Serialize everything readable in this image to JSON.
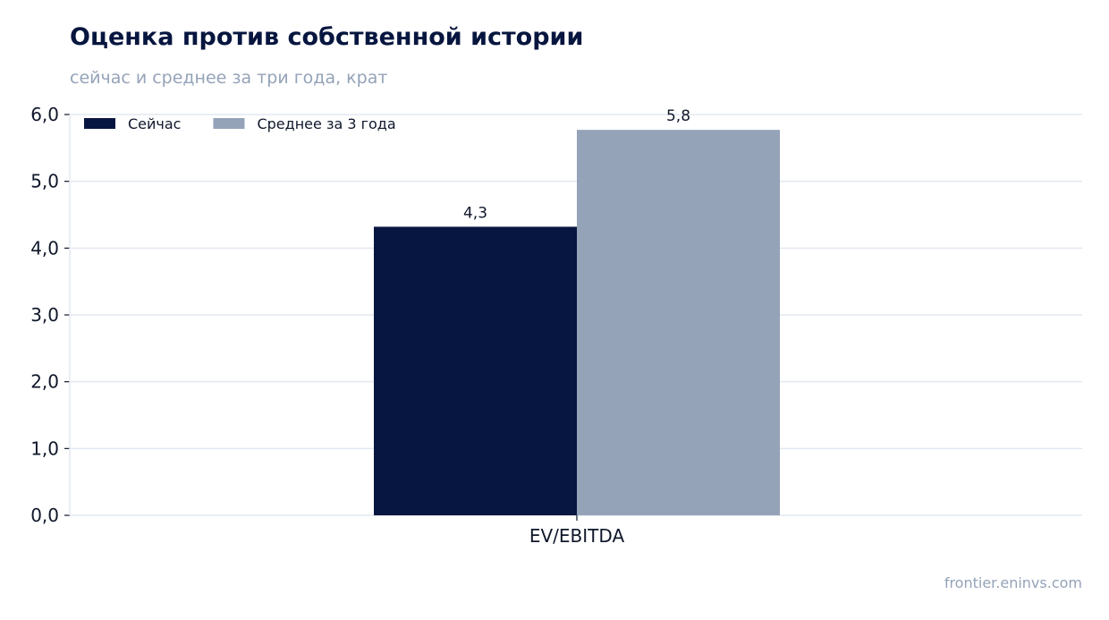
{
  "header": {
    "title": "Оценка против собственной истории",
    "subtitle": "сейчас и среднее за три года, крат"
  },
  "footer": {
    "source": "frontier.eninvs.com"
  },
  "colors": {
    "now": "#071640",
    "avg": "#94a3b8",
    "grid": "#e2e8f0",
    "text": "#0f172a"
  },
  "chart_data": {
    "type": "bar",
    "title": "Оценка против собственной истории",
    "subtitle": "сейчас и среднее за три года, крат",
    "categories": [
      "EV/EBITDA"
    ],
    "series": [
      {
        "name": "Сейчас",
        "values": [
          4.32
        ],
        "label": "4,3"
      },
      {
        "name": "Среднее за 3 года",
        "values": [
          5.77
        ],
        "label": "5,8"
      }
    ],
    "ylim": [
      0,
      6
    ],
    "yticks": [
      0,
      1,
      2,
      3,
      4,
      5,
      6
    ],
    "ytick_labels": [
      "0,0",
      "1,0",
      "2,0",
      "3,0",
      "4,0",
      "5,0",
      "6,0"
    ],
    "grid": true,
    "legend_position": "top-left",
    "xlabel": "",
    "ylabel": ""
  }
}
